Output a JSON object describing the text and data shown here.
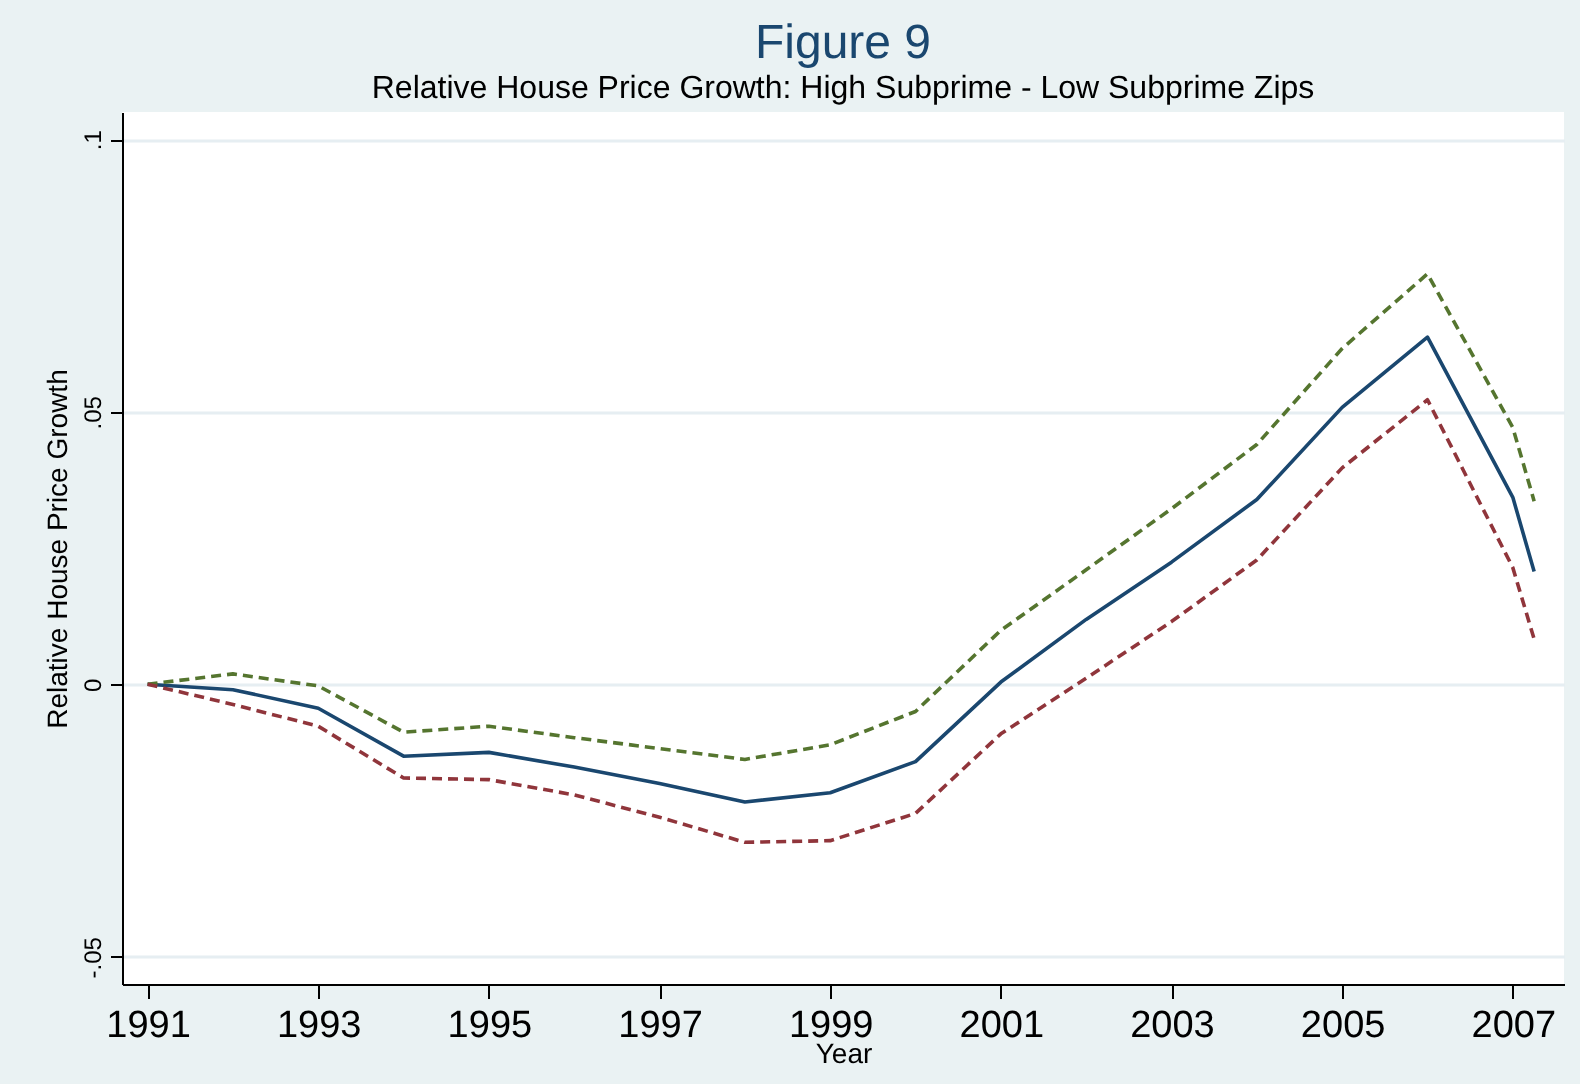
{
  "chart_data": {
    "type": "line",
    "title": "Figure 9",
    "subtitle": "Relative House Price Growth: High Subprime - Low Subprime Zips",
    "xlabel": "Year",
    "ylabel": "Relative House Price Growth",
    "x": [
      1991,
      1992,
      1993,
      1994,
      1995,
      1996,
      1997,
      1998,
      1999,
      2000,
      2001,
      2002,
      2003,
      2004,
      2005,
      2006,
      2007,
      2007.25
    ],
    "series": [
      {
        "color": "#1a476f",
        "line_style": "solid",
        "values": [
          0,
          -0.001,
          -0.0044,
          -0.0132,
          -0.0125,
          -0.0152,
          -0.0182,
          -0.0216,
          -0.0199,
          -0.0142,
          0.0004,
          0.0119,
          0.0224,
          0.0339,
          0.0508,
          0.0637,
          0.0343,
          0.0207
        ]
      },
      {
        "color": "#55752f",
        "line_style": "dashed",
        "values": [
          0,
          0.0019,
          -0.0003,
          -0.0088,
          -0.0077,
          -0.0098,
          -0.0118,
          -0.0138,
          -0.0111,
          -0.005,
          0.0099,
          0.021,
          0.0322,
          0.044,
          0.0616,
          0.0753,
          0.0471,
          0.0336
        ]
      },
      {
        "color": "#90353b",
        "line_style": "dashed",
        "values": [
          0,
          -0.0037,
          -0.0077,
          -0.0172,
          -0.0175,
          -0.0203,
          -0.0244,
          -0.029,
          -0.0287,
          -0.0237,
          -0.0091,
          0.0011,
          0.0115,
          0.0228,
          0.0397,
          0.0522,
          0.0214,
          0.0083
        ]
      }
    ],
    "xlim": [
      1990.7,
      2007.6
    ],
    "xticks": [
      1991,
      1993,
      1995,
      1997,
      1999,
      2001,
      2003,
      2005,
      2007
    ],
    "ylim": [
      -0.055,
      0.105
    ],
    "yticks": [
      {
        "value": -0.05,
        "label": "-.05"
      },
      {
        "value": 0,
        "label": "0"
      },
      {
        "value": 0.05,
        "label": ".05"
      },
      {
        "value": 0.1,
        "label": ".1"
      }
    ],
    "grid": "y"
  }
}
